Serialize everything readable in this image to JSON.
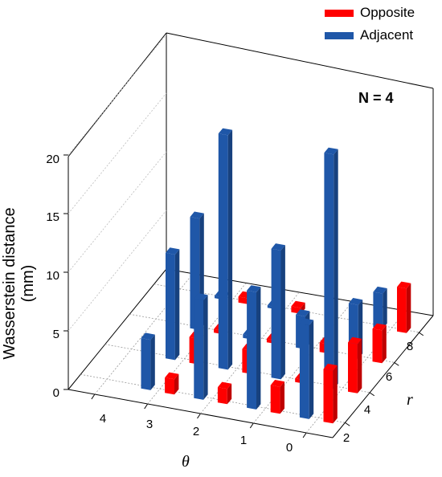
{
  "legend": {
    "items": [
      {
        "label": "Opposite",
        "color": "#ff0000"
      },
      {
        "label": "Adjacent",
        "color": "#1f57a8"
      }
    ]
  },
  "annotation": "N = 4",
  "chart_data": {
    "type": "bar3d",
    "xlabel": "θ",
    "ylabel": "Wasserstein distance (mm)",
    "zlabel": "r",
    "theta_ticks": [
      "4",
      "3",
      "2",
      "1",
      "0"
    ],
    "r_ticks": [
      "2",
      "4",
      "6",
      "8"
    ],
    "y_ticks": [
      "0",
      "5",
      "10",
      "15",
      "20"
    ],
    "ylim": [
      0,
      20
    ],
    "grid": true,
    "series": [
      {
        "name": "Opposite",
        "color": "#ff0000",
        "points": [
          {
            "theta": 0,
            "r": 2,
            "value": 4.5
          },
          {
            "theta": 0,
            "r": 4,
            "value": 4.2
          },
          {
            "theta": 0,
            "r": 6,
            "value": 2.8
          },
          {
            "theta": 0,
            "r": 8,
            "value": 3.8
          },
          {
            "theta": 1,
            "r": 2,
            "value": 2.3
          },
          {
            "theta": 1,
            "r": 4,
            "value": 0.3
          },
          {
            "theta": 1,
            "r": 6,
            "value": 0.8
          },
          {
            "theta": 2,
            "r": 2,
            "value": 1.3
          },
          {
            "theta": 2,
            "r": 4,
            "value": 2.0
          },
          {
            "theta": 2,
            "r": 6,
            "value": 0.3
          },
          {
            "theta": 2,
            "r": 8,
            "value": 0.5
          },
          {
            "theta": 3,
            "r": 2,
            "value": 1.3
          },
          {
            "theta": 3,
            "r": 4,
            "value": 2.2
          },
          {
            "theta": 3,
            "r": 6,
            "value": 0.3
          },
          {
            "theta": 3,
            "r": 8,
            "value": 0.5
          }
        ]
      },
      {
        "name": "Adjacent",
        "color": "#1f57a8",
        "points": [
          {
            "theta": 0,
            "r": 2,
            "value": 8.0
          },
          {
            "theta": 0,
            "r": 4,
            "value": 20.0
          },
          {
            "theta": 0,
            "r": 6,
            "value": 4.6
          },
          {
            "theta": 0,
            "r": 8,
            "value": 3.0
          },
          {
            "theta": 1,
            "r": 2,
            "value": 10.0
          },
          {
            "theta": 1,
            "r": 4,
            "value": 11.0
          },
          {
            "theta": 1,
            "r": 6,
            "value": 2.8
          },
          {
            "theta": 2,
            "r": 2,
            "value": 8.5
          },
          {
            "theta": 2,
            "r": 4,
            "value": 20.0
          },
          {
            "theta": 2,
            "r": 6,
            "value": 0.3
          },
          {
            "theta": 2,
            "r": 8,
            "value": 0.2
          },
          {
            "theta": 3,
            "r": 2,
            "value": 4.3
          },
          {
            "theta": 3,
            "r": 4,
            "value": 9.0
          },
          {
            "theta": 3,
            "r": 6,
            "value": 9.5
          },
          {
            "theta": 3,
            "r": 8,
            "value": 0.2
          }
        ]
      }
    ]
  }
}
